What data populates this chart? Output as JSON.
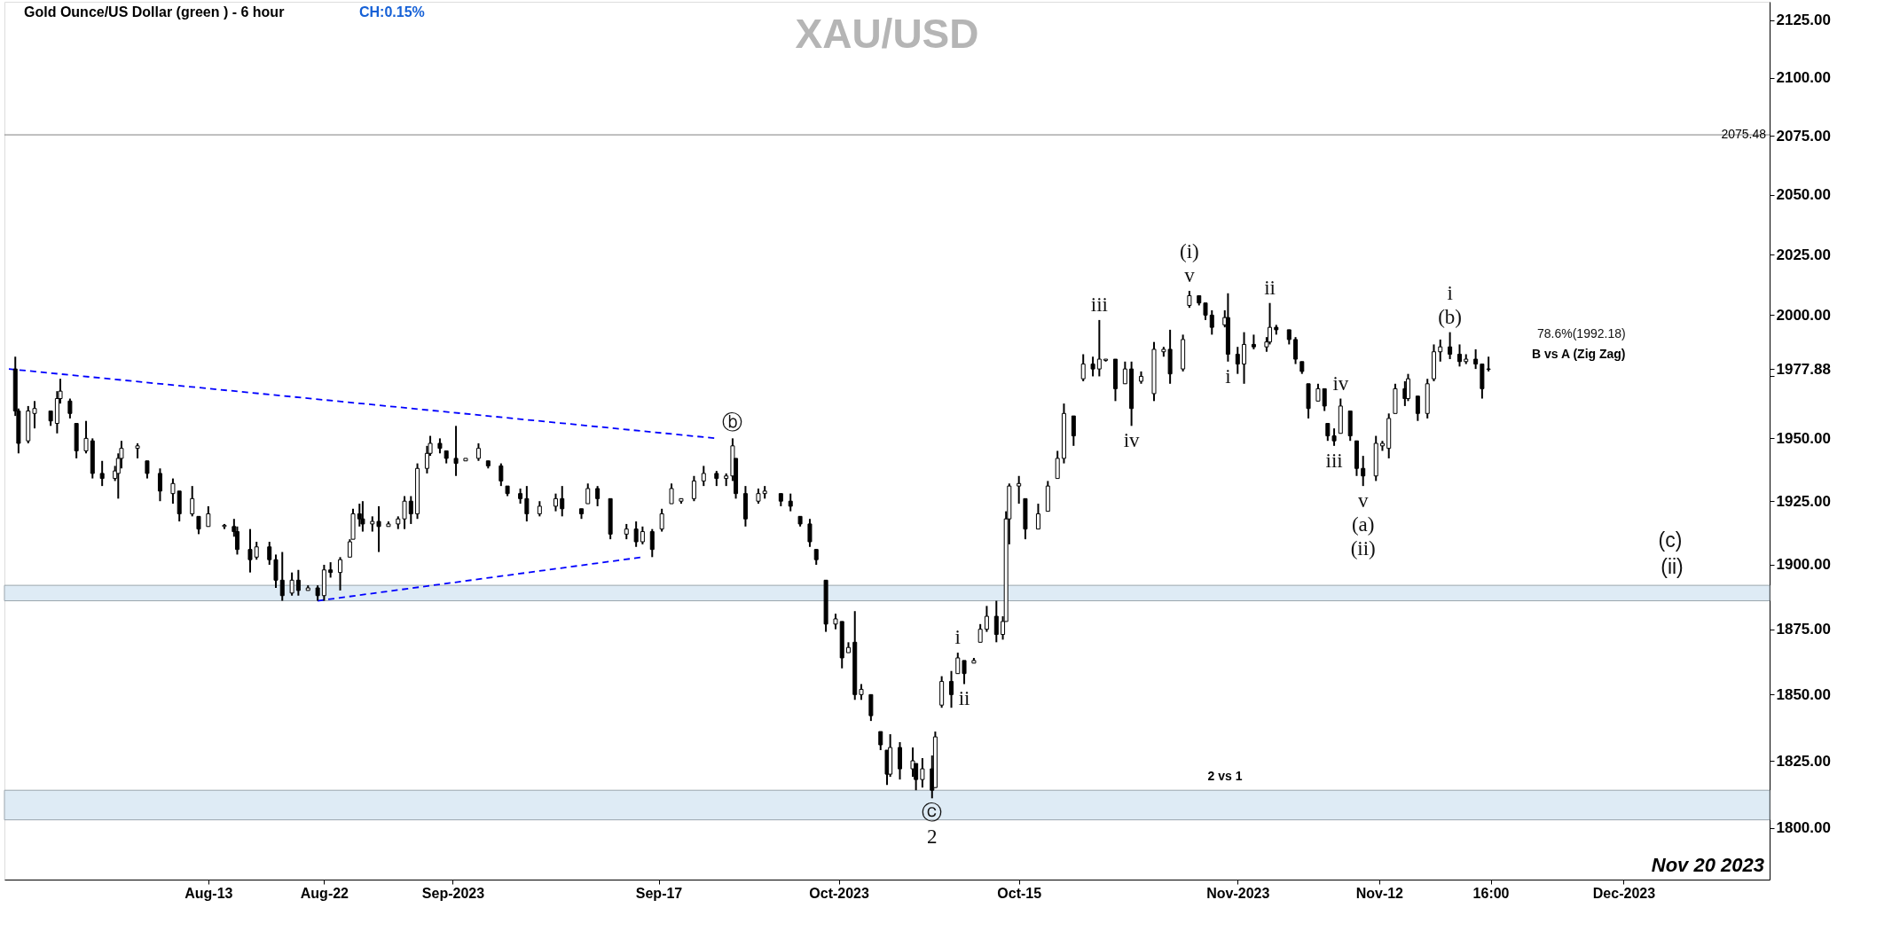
{
  "chart_data": {
    "type": "candlestick",
    "title": "XAU/USD",
    "subtitle": "Gold Ounce/US Dollar (green ) - 6 hour",
    "log": true,
    "xlim": [
      "2023-07-28T12:00",
      "2023-12-12T00:00"
    ],
    "ylim": [
      1781,
      2133
    ],
    "xticks": [
      {
        "value": "2023-08-13",
        "label": "Aug-13"
      },
      {
        "value": "2023-08-22",
        "label": "Aug-22"
      },
      {
        "value": "2023-09-01",
        "label": "Sep-2023"
      },
      {
        "value": "2023-09-17",
        "label": "Sep-17"
      },
      {
        "value": "2023-10-01",
        "label": "Oct-2023"
      },
      {
        "value": "2023-10-15",
        "label": "Oct-15"
      },
      {
        "value": "2023-11-01",
        "label": "Nov-2023"
      },
      {
        "value": "2023-11-12",
        "label": "Nov-12"
      },
      {
        "value": "2023-11-20T16:00",
        "label": "16:00"
      },
      {
        "value": "2023-12-01",
        "label": "Dec-2023"
      }
    ],
    "yticks": [
      {
        "value": 1800,
        "label": "1800.00"
      },
      {
        "value": 1825,
        "label": "1825.00"
      },
      {
        "value": 1850,
        "label": "1850.00"
      },
      {
        "value": 1875,
        "label": "1875.00"
      },
      {
        "value": 1900,
        "label": "1900.00"
      },
      {
        "value": 1925,
        "label": "1925.00"
      },
      {
        "value": 1950,
        "label": "1950.00"
      },
      {
        "value": 1975,
        "label": null
      },
      {
        "value": 1977.88,
        "label": "1977.88"
      },
      {
        "value": 2000,
        "label": "2000.00"
      },
      {
        "value": 2025,
        "label": "2025.00"
      },
      {
        "value": 2050,
        "label": "2050.00"
      },
      {
        "value": 2075,
        "label": "2075.00"
      },
      {
        "value": 2100,
        "label": "2100.00"
      },
      {
        "value": 2125,
        "label": "2125.00"
      }
    ],
    "x": [
      "2023-07-29T00:00",
      "2023-07-29T06:00",
      "2023-07-30T00:00",
      "2023-07-30T12:00",
      "2023-07-31T18:00",
      "2023-08-01T06:00",
      "2023-08-01T12:00",
      "2023-08-02T06:00",
      "2023-08-02T18:00",
      "2023-08-03T12:00",
      "2023-08-04T00:00",
      "2023-08-04T18:00",
      "2023-08-05T18:00",
      "2023-08-06T00:00",
      "2023-08-06T06:00",
      "2023-08-07T12:00",
      "2023-08-08T06:00",
      "2023-08-09T06:00",
      "2023-08-10T06:00",
      "2023-08-10T18:00",
      "2023-08-11T18:00",
      "2023-08-12T06:00",
      "2023-08-13T00:00",
      "2023-08-14T06:00",
      "2023-08-15T00:00",
      "2023-08-15T06:00",
      "2023-08-16T06:00",
      "2023-08-16T18:00",
      "2023-08-17T18:00",
      "2023-08-18T06:00",
      "2023-08-18T18:00",
      "2023-08-19T12:00",
      "2023-08-20T00:00",
      "2023-08-20T18:00",
      "2023-08-21T12:00",
      "2023-08-22T00:00",
      "2023-08-22T12:00",
      "2023-08-23T06:00",
      "2023-08-24T00:00",
      "2023-08-24T06:00",
      "2023-08-24T18:00",
      "2023-08-25T00:00",
      "2023-08-25T18:00",
      "2023-08-26T06:00",
      "2023-08-27T00:00",
      "2023-08-27T18:00",
      "2023-08-28T06:00",
      "2023-08-28T18:00",
      "2023-08-29T06:00",
      "2023-08-30T00:00",
      "2023-08-30T06:00",
      "2023-08-31T00:00",
      "2023-08-31T12:00",
      "2023-09-01T06:00",
      "2023-09-02T00:00",
      "2023-09-03T00:00",
      "2023-09-03T18:00",
      "2023-09-04T18:00",
      "2023-09-05T06:00",
      "2023-09-06T06:00",
      "2023-09-06T18:00",
      "2023-09-07T18:00",
      "2023-09-09T00:00",
      "2023-09-09T12:00",
      "2023-09-11T00:00",
      "2023-09-11T12:00",
      "2023-09-12T06:00",
      "2023-09-13T06:00",
      "2023-09-14T12:00",
      "2023-09-15T06:00",
      "2023-09-15T18:00",
      "2023-09-16T12:00",
      "2023-09-17T06:00",
      "2023-09-18T00:00",
      "2023-09-18T18:00",
      "2023-09-19T18:00",
      "2023-09-20T12:00",
      "2023-09-21T12:00",
      "2023-09-22T06:00",
      "2023-09-22T18:00",
      "2023-09-23T00:00",
      "2023-09-23T18:00",
      "2023-09-24T18:00",
      "2023-09-25T06:00",
      "2023-09-26T12:00",
      "2023-09-27T06:00",
      "2023-09-28T00:00",
      "2023-09-28T18:00",
      "2023-09-29T06:00",
      "2023-09-30T00:00",
      "2023-09-30T18:00",
      "2023-10-01T06:00",
      "2023-10-01T18:00",
      "2023-10-02T06:00",
      "2023-10-02T18:00",
      "2023-10-03T12:00",
      "2023-10-04T06:00",
      "2023-10-04T18:00",
      "2023-10-05T00:00",
      "2023-10-05T18:00",
      "2023-10-06T18:00",
      "2023-10-07T00:00",
      "2023-10-07T12:00",
      "2023-10-08T06:00",
      "2023-10-08T12:00",
      "2023-10-09T00:00",
      "2023-10-09T18:00",
      "2023-10-10T06:00",
      "2023-10-10T18:00",
      "2023-10-11T12:00",
      "2023-10-12T00:00",
      "2023-10-12T12:00",
      "2023-10-13T06:00",
      "2023-10-13T18:00",
      "2023-10-14T00:00",
      "2023-10-14T06:00",
      "2023-10-15T00:00",
      "2023-10-15T12:00",
      "2023-10-16T12:00",
      "2023-10-17T06:00",
      "2023-10-18T00:00",
      "2023-10-18T12:00",
      "2023-10-19T06:00",
      "2023-10-20T00:00",
      "2023-10-20T18:00",
      "2023-10-21T06:00",
      "2023-10-21T18:00",
      "2023-10-22T12:00",
      "2023-10-23T06:00",
      "2023-10-23T18:00",
      "2023-10-24T12:00",
      "2023-10-25T12:00",
      "2023-10-26T06:00",
      "2023-10-26T18:00",
      "2023-10-27T18:00",
      "2023-10-28T06:00",
      "2023-10-29T00:00",
      "2023-10-29T12:00",
      "2023-10-30T00:00",
      "2023-10-31T00:00",
      "2023-10-31T06:00",
      "2023-11-01T00:00",
      "2023-11-01T12:00",
      "2023-11-02T06:00",
      "2023-11-03T06:00",
      "2023-11-03T12:00",
      "2023-11-04T00:00",
      "2023-11-05T00:00",
      "2023-11-05T12:00",
      "2023-11-06T00:00",
      "2023-11-06T12:00",
      "2023-11-07T06:00",
      "2023-11-07T18:00",
      "2023-11-08T00:00",
      "2023-11-08T12:00",
      "2023-11-09T00:00",
      "2023-11-09T18:00",
      "2023-11-10T06:00",
      "2023-11-10T18:00",
      "2023-11-11T18:00",
      "2023-11-12T06:00",
      "2023-11-12T18:00",
      "2023-11-13T06:00",
      "2023-11-14T00:00",
      "2023-11-14T06:00",
      "2023-11-15T00:00",
      "2023-11-15T18:00",
      "2023-11-16T06:00",
      "2023-11-16T18:00",
      "2023-11-17T12:00",
      "2023-11-18T06:00",
      "2023-11-18T18:00",
      "2023-11-19T12:00",
      "2023-11-20T00:00",
      "2023-11-20T12:00"
    ],
    "ohlc": [
      [
        1978,
        1983,
        1959,
        1961
      ],
      [
        1961,
        1962,
        1944,
        1948
      ],
      [
        1949,
        1963,
        1948,
        1961
      ],
      [
        1960,
        1965,
        1954,
        1962
      ],
      [
        1961,
        1961,
        1955,
        1957
      ],
      [
        1956,
        1969,
        1952,
        1966
      ],
      [
        1966,
        1974,
        1964,
        1969
      ],
      [
        1965,
        1966,
        1958,
        1960
      ],
      [
        1956,
        1956,
        1942,
        1945
      ],
      [
        1945,
        1957,
        1944,
        1950
      ],
      [
        1949,
        1950,
        1934,
        1936
      ],
      [
        1936,
        1941,
        1931,
        1934
      ],
      [
        1934,
        1939,
        1933,
        1937
      ],
      [
        1936,
        1944,
        1926,
        1942
      ],
      [
        1942,
        1949,
        1938,
        1946
      ],
      [
        1946,
        1948,
        1942,
        1947
      ],
      [
        1941,
        1941,
        1934,
        1936
      ],
      [
        1936,
        1938,
        1925,
        1929
      ],
      [
        1928,
        1934,
        1924,
        1932
      ],
      [
        1929,
        1929,
        1917,
        1920
      ],
      [
        1920,
        1931,
        1919,
        1926
      ],
      [
        1919,
        1919,
        1912,
        1914
      ],
      [
        1915,
        1923,
        1915,
        1920
      ],
      [
        1915,
        1916,
        1914,
        1915.5
      ],
      [
        1915,
        1918,
        1911,
        1913
      ],
      [
        1913,
        1915,
        1904,
        1906
      ],
      [
        1906,
        1914,
        1897,
        1902
      ],
      [
        1903,
        1909,
        1902,
        1907
      ],
      [
        1907,
        1909,
        1900,
        1902
      ],
      [
        1902,
        1904,
        1891,
        1894
      ],
      [
        1894,
        1905,
        1886,
        1888
      ],
      [
        1889,
        1897,
        1888,
        1894
      ],
      [
        1894,
        1898,
        1888,
        1890
      ],
      [
        1890,
        1892,
        1890,
        1891
      ],
      [
        1891,
        1892,
        1886,
        1888
      ],
      [
        1888,
        1900,
        1886,
        1898
      ],
      [
        1898,
        1901,
        1895,
        1897
      ],
      [
        1897,
        1903,
        1890,
        1902
      ],
      [
        1903,
        1910,
        1903,
        1909
      ],
      [
        1910,
        1922,
        1910,
        1920
      ],
      [
        1920,
        1924,
        1915,
        1918
      ],
      [
        1918,
        1925,
        1913,
        1916
      ],
      [
        1916,
        1919,
        1913,
        1917
      ],
      [
        1917,
        1923,
        1905,
        1915
      ],
      [
        1915,
        1917,
        1915,
        1916
      ],
      [
        1916,
        1919,
        1914,
        1918
      ],
      [
        1918,
        1927,
        1914,
        1925
      ],
      [
        1925,
        1927,
        1916,
        1920
      ],
      [
        1920,
        1940,
        1918,
        1938
      ],
      [
        1938,
        1947,
        1936,
        1944
      ],
      [
        1944,
        1951,
        1943,
        1948
      ],
      [
        1948,
        1950,
        1944,
        1946
      ],
      [
        1945,
        1945,
        1940,
        1942
      ],
      [
        1942,
        1955,
        1935,
        1940
      ],
      [
        1941,
        1942,
        1941,
        1942
      ],
      [
        1942,
        1948,
        1941,
        1946
      ],
      [
        1941,
        1941,
        1938,
        1939
      ],
      [
        1939,
        1940,
        1931,
        1933
      ],
      [
        1931,
        1931,
        1927,
        1928
      ],
      [
        1928,
        1930,
        1924,
        1926
      ],
      [
        1926,
        1931,
        1917,
        1920
      ],
      [
        1920,
        1925,
        1919,
        1923
      ],
      [
        1923,
        1928,
        1921,
        1926
      ],
      [
        1926,
        1931,
        1919,
        1922
      ],
      [
        1922,
        1922,
        1918,
        1920
      ],
      [
        1924,
        1932,
        1924,
        1930
      ],
      [
        1930,
        1931,
        1923,
        1926
      ],
      [
        1926,
        1926,
        1910,
        1912
      ],
      [
        1912,
        1916,
        1910,
        1914
      ],
      [
        1914,
        1917,
        1907,
        1909
      ],
      [
        1909,
        1915,
        1908,
        1913
      ],
      [
        1913,
        1914,
        1903,
        1906
      ],
      [
        1914,
        1922,
        1913,
        1920
      ],
      [
        1924,
        1932,
        1924,
        1930
      ],
      [
        1925,
        1926,
        1924,
        1926
      ],
      [
        1926,
        1935,
        1925,
        1933
      ],
      [
        1933,
        1939,
        1931,
        1936
      ],
      [
        1936,
        1937,
        1931,
        1934
      ],
      [
        1934,
        1936,
        1931,
        1935
      ],
      [
        1935,
        1950,
        1933,
        1947
      ],
      [
        1942,
        1942,
        1926,
        1928
      ],
      [
        1928,
        1931,
        1915,
        1918
      ],
      [
        1925,
        1930,
        1924,
        1928
      ],
      [
        1928,
        1931,
        1926,
        1929
      ],
      [
        1928,
        1928,
        1923,
        1925
      ],
      [
        1925,
        1928,
        1921,
        1923
      ],
      [
        1919,
        1919,
        1915,
        1916
      ],
      [
        1916,
        1918,
        1907,
        1909
      ],
      [
        1906,
        1906,
        1900,
        1902
      ],
      [
        1894,
        1894,
        1874,
        1877
      ],
      [
        1877,
        1881,
        1875,
        1879
      ],
      [
        1878,
        1878,
        1860,
        1864
      ],
      [
        1866,
        1870,
        1866,
        1868
      ],
      [
        1870,
        1882,
        1848,
        1850
      ],
      [
        1850,
        1854,
        1848,
        1852
      ],
      [
        1850,
        1850,
        1840,
        1842
      ],
      [
        1836,
        1836,
        1829,
        1831
      ],
      [
        1829,
        1829,
        1816,
        1820
      ],
      [
        1820,
        1835,
        1819,
        1830
      ],
      [
        1830,
        1832,
        1818,
        1822
      ],
      [
        1822,
        1830,
        1819,
        1825
      ],
      [
        1824,
        1824,
        1814,
        1818
      ],
      [
        1818,
        1826,
        1815,
        1822
      ],
      [
        1822,
        1827,
        1811,
        1814
      ],
      [
        1815,
        1836,
        1815,
        1834
      ],
      [
        1846,
        1857,
        1845,
        1855
      ],
      [
        1855,
        1859,
        1845,
        1850
      ],
      [
        1858,
        1866,
        1858,
        1864
      ],
      [
        1863,
        1863,
        1854,
        1858
      ],
      [
        1862,
        1864,
        1862,
        1863
      ],
      [
        1870,
        1877,
        1870,
        1875
      ],
      [
        1875,
        1884,
        1874,
        1880
      ],
      [
        1880,
        1886,
        1870,
        1873
      ],
      [
        1873,
        1880,
        1871,
        1878
      ],
      [
        1878,
        1921,
        1878,
        1918
      ],
      [
        1918,
        1932,
        1908,
        1931
      ],
      [
        1931,
        1935,
        1924,
        1932
      ],
      [
        1926,
        1926,
        1910,
        1914
      ],
      [
        1914,
        1924,
        1914,
        1920
      ],
      [
        1921,
        1933,
        1921,
        1931
      ],
      [
        1934,
        1945,
        1934,
        1942
      ],
      [
        1942,
        1964,
        1940,
        1960
      ],
      [
        1959,
        1959,
        1947,
        1951
      ],
      [
        1974,
        1984,
        1973,
        1980
      ],
      [
        1980,
        1983,
        1975,
        1978
      ],
      [
        1978,
        1998,
        1975,
        1982
      ],
      [
        1981.5,
        1982,
        1981,
        1982
      ],
      [
        1982,
        1982,
        1965,
        1970
      ],
      [
        1972,
        1981,
        1972,
        1978
      ],
      [
        1978,
        1981,
        1955,
        1962
      ],
      [
        1973,
        1977,
        1972,
        1975
      ],
      [
        1968,
        1989,
        1965,
        1986
      ],
      [
        1985,
        1987,
        1983,
        1986
      ],
      [
        1986,
        1994,
        1972,
        1976
      ],
      [
        1978,
        1992,
        1977,
        1990
      ],
      [
        2004,
        2010,
        2003,
        2008
      ],
      [
        2008,
        2008,
        2004,
        2005
      ],
      [
        2005,
        2005,
        1998,
        2000
      ],
      [
        2000,
        2002,
        1992,
        1995
      ],
      [
        1996,
        2002,
        1995,
        1999
      ],
      [
        1999,
        2009,
        1981,
        1984
      ],
      [
        1984,
        1987,
        1976,
        1980
      ],
      [
        1980,
        1993,
        1972,
        1988
      ],
      [
        1988,
        1992,
        1986,
        1987
      ],
      [
        1987,
        1991,
        1985,
        1989
      ],
      [
        1989,
        2005,
        1988,
        1995
      ],
      [
        1995,
        1996,
        1992,
        1994
      ],
      [
        1994,
        1994,
        1988,
        1990
      ],
      [
        1990,
        1991,
        1980,
        1982
      ],
      [
        1981,
        1981,
        1976,
        1977
      ],
      [
        1972,
        1972,
        1958,
        1962
      ],
      [
        1965,
        1972,
        1965,
        1970
      ],
      [
        1970,
        1970,
        1961,
        1963
      ],
      [
        1956,
        1956,
        1949,
        1951
      ],
      [
        1951,
        1954,
        1947,
        1949
      ],
      [
        1952,
        1966,
        1952,
        1963
      ],
      [
        1961,
        1961,
        1949,
        1951
      ],
      [
        1949,
        1949,
        1935,
        1938
      ],
      [
        1938,
        1943,
        1931,
        1935
      ],
      [
        1935,
        1951,
        1933,
        1948
      ],
      [
        1947,
        1949,
        1945,
        1948
      ],
      [
        1946,
        1960,
        1942,
        1958
      ],
      [
        1960,
        1972,
        1960,
        1970
      ],
      [
        1970,
        1973,
        1963,
        1966
      ],
      [
        1966,
        1976,
        1965,
        1974
      ],
      [
        1967,
        1967,
        1957,
        1960
      ],
      [
        1960,
        1974,
        1958,
        1972
      ],
      [
        1974,
        1988,
        1973,
        1985
      ],
      [
        1985,
        1990,
        1981,
        1987
      ],
      [
        1987,
        1993,
        1982,
        1984
      ],
      [
        1984,
        1988,
        1979,
        1981
      ],
      [
        1981,
        1984,
        1980,
        1982
      ],
      [
        1982,
        1986,
        1978,
        1980
      ],
      [
        1980,
        1980,
        1966,
        1970
      ],
      [
        1978,
        1983,
        1977,
        1977.88
      ]
    ],
    "series": [
      {
        "type": "line",
        "color": "#0000ff",
        "line_style": "dashed",
        "x": [
          "2023-07-28T12:00",
          "2023-09-21T12:00"
        ],
        "values": [
          1978,
          1950
        ]
      },
      {
        "type": "line",
        "color": "#0000ff",
        "line_style": "dashed",
        "x": [
          "2023-08-21T12:00",
          "2023-09-15T18:00"
        ],
        "values": [
          1886,
          1903
        ]
      }
    ],
    "bands": [
      {
        "axis": "y",
        "from": 1886,
        "to": 1892,
        "color": "#deebf5"
      },
      {
        "axis": "y",
        "from": 1803,
        "to": 1814,
        "color": "#deebf5"
      }
    ],
    "ref_lines": [
      {
        "axis": "y",
        "value": 2075.48,
        "label": "2075.48",
        "color": "#808080"
      }
    ],
    "annotations": [
      "CH:0.15%",
      "Nov 20 2023",
      "78.6%(1992.18)",
      "B vs A (Zig Zag)",
      "(c)",
      "(ii)",
      "2 vs 1",
      {
        "text": "ⓑ",
        "x": "2023-09-22T18:00",
        "y": 1950
      },
      {
        "text": "ⓒ",
        "x": "2023-10-08T06:00",
        "y": 1811
      },
      {
        "text": "2",
        "x": "2023-10-08T06:00",
        "y": 1811
      },
      {
        "text": "i",
        "x": "2023-10-10T06:00",
        "y": 1866
      },
      {
        "text": "ii",
        "x": "2023-10-10T18:00",
        "y": 1854
      },
      {
        "text": "iii",
        "x": "2023-10-21T06:00",
        "y": 1998
      },
      {
        "text": "iv",
        "x": "2023-10-23T18:00",
        "y": 1955
      },
      {
        "text": "v",
        "x": "2023-10-28T06:00",
        "y": 2010
      },
      {
        "text": "(i)",
        "x": "2023-10-28T06:00",
        "y": 2010
      },
      {
        "text": "i",
        "x": "2023-10-31T06:00",
        "y": 1981
      },
      {
        "text": "ii",
        "x": "2023-11-03T12:00",
        "y": 2005
      },
      {
        "text": "iv",
        "x": "2023-11-09T00:00",
        "y": 1966
      },
      {
        "text": "iii",
        "x": "2023-11-08T12:00",
        "y": 1947
      },
      {
        "text": "v",
        "x": "2023-11-10T18:00",
        "y": 1931
      },
      {
        "text": "(a)",
        "x": "2023-11-10T18:00",
        "y": 1931
      },
      {
        "text": "(ii)",
        "x": "2023-11-10T18:00",
        "y": 1931
      },
      {
        "text": "(b)",
        "x": "2023-11-17T12:00",
        "y": 1993
      },
      {
        "text": "i",
        "x": "2023-11-17T12:00",
        "y": 1993
      }
    ]
  }
}
